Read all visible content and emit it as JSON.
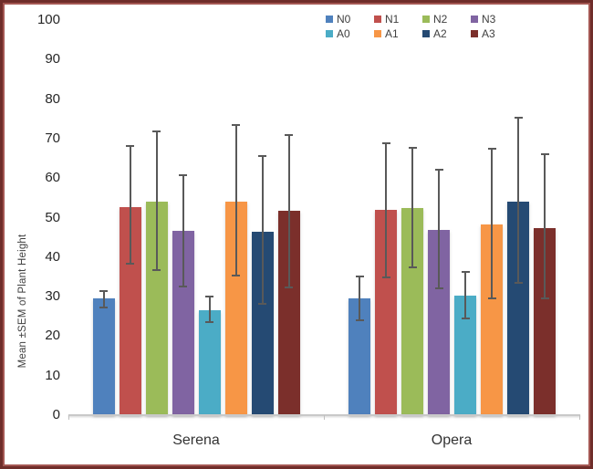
{
  "chart_data": {
    "type": "bar",
    "title": "",
    "ylabel": "Mean ±SEM of Plant Height",
    "xlabel": "",
    "categories": [
      "Serena",
      "Opera"
    ],
    "ylim": [
      0,
      100
    ],
    "ytick_step": 10,
    "grid": false,
    "legend_position": "top",
    "legend_rows": [
      [
        "N0",
        "N1",
        "N2",
        "N3"
      ],
      [
        "A0",
        "A1",
        "A2",
        "A3"
      ]
    ],
    "series": [
      {
        "name": "N0",
        "color": "#4F81BD",
        "values": [
          29.5,
          29.5
        ],
        "err_low": [
          27.0,
          23.7
        ],
        "err_high": [
          31.6,
          35.3
        ]
      },
      {
        "name": "N1",
        "color": "#C0504D",
        "values": [
          52.7,
          51.9
        ],
        "err_low": [
          38.2,
          34.6
        ],
        "err_high": [
          68.4,
          69.1
        ]
      },
      {
        "name": "N2",
        "color": "#9BBB59",
        "values": [
          54.0,
          52.4
        ],
        "err_low": [
          36.4,
          37.2
        ],
        "err_high": [
          72.1,
          67.9
        ]
      },
      {
        "name": "N3",
        "color": "#8064A2",
        "values": [
          46.6,
          46.9
        ],
        "err_low": [
          32.3,
          31.8
        ],
        "err_high": [
          61.0,
          62.4
        ]
      },
      {
        "name": "A0",
        "color": "#4BACC6",
        "values": [
          26.5,
          30.3
        ],
        "err_low": [
          23.3,
          24.2
        ],
        "err_high": [
          30.3,
          36.4
        ]
      },
      {
        "name": "A1",
        "color": "#F79646",
        "values": [
          54.0,
          48.2
        ],
        "err_low": [
          35.1,
          29.3
        ],
        "err_high": [
          73.6,
          67.6
        ]
      },
      {
        "name": "A2",
        "color": "#254A73",
        "values": [
          46.4,
          54.1
        ],
        "err_low": [
          27.9,
          33.3
        ],
        "err_high": [
          65.8,
          75.5
        ]
      },
      {
        "name": "A3",
        "color": "#7B2F2B",
        "values": [
          51.7,
          47.4
        ],
        "err_low": [
          32.0,
          29.3
        ],
        "err_high": [
          71.1,
          66.3
        ]
      }
    ],
    "error_bar_color": "#595959",
    "axis_line_color": "#BFBFBF",
    "text_color": "#3F3F3F",
    "frame_border_color": "#6F2D2A"
  }
}
